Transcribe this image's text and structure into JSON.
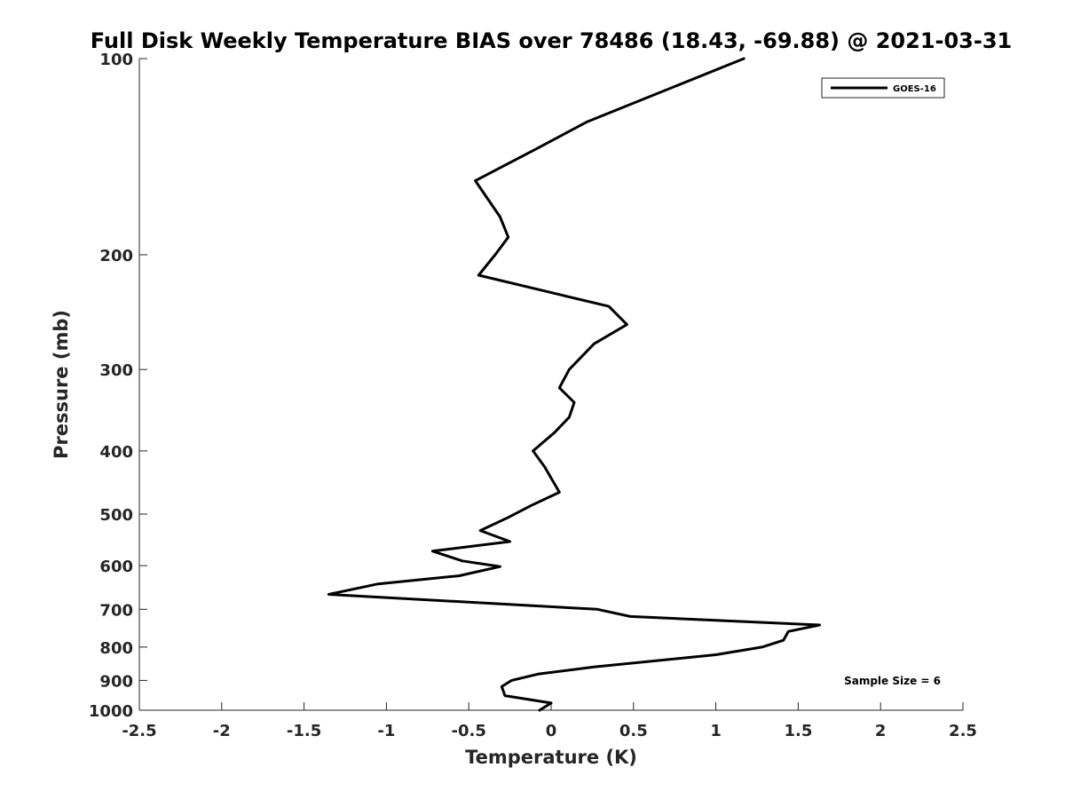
{
  "chart_data": {
    "type": "line",
    "title": "Full Disk Weekly Temperature BIAS over 78486 (18.43, -69.88) @ 2021-03-31",
    "xlabel": "Temperature (K)",
    "ylabel": "Pressure (mb)",
    "xlim": [
      -2.5,
      2.5
    ],
    "ylim": [
      100,
      1000
    ],
    "y_scale": "log",
    "y_reversed": true,
    "grid": false,
    "legend_position": "top-right",
    "x_ticks": [
      {
        "value": -2.5,
        "label": "-2.5"
      },
      {
        "value": -2,
        "label": "-2"
      },
      {
        "value": -1.5,
        "label": "-1.5"
      },
      {
        "value": -1,
        "label": "-1"
      },
      {
        "value": -0.5,
        "label": "-0.5"
      },
      {
        "value": 0,
        "label": "0"
      },
      {
        "value": 0.5,
        "label": "0.5"
      },
      {
        "value": 1,
        "label": "1"
      },
      {
        "value": 1.5,
        "label": "1.5"
      },
      {
        "value": 2,
        "label": "2"
      },
      {
        "value": 2.5,
        "label": "2.5"
      }
    ],
    "y_ticks": [
      {
        "value": 100,
        "label": "100"
      },
      {
        "value": 200,
        "label": "200"
      },
      {
        "value": 300,
        "label": "300"
      },
      {
        "value": 400,
        "label": "400"
      },
      {
        "value": 500,
        "label": "500"
      },
      {
        "value": 600,
        "label": "600"
      },
      {
        "value": 700,
        "label": "700"
      },
      {
        "value": 800,
        "label": "800"
      },
      {
        "value": 900,
        "label": "900"
      },
      {
        "value": 1000,
        "label": "1000"
      }
    ],
    "series": [
      {
        "name": "GOES-16",
        "color": "#000000",
        "points": [
          {
            "x": 1.17,
            "p": 100
          },
          {
            "x": 0.22,
            "p": 125
          },
          {
            "x": -0.1,
            "p": 138
          },
          {
            "x": -0.46,
            "p": 154
          },
          {
            "x": -0.31,
            "p": 175
          },
          {
            "x": -0.26,
            "p": 188
          },
          {
            "x": -0.34,
            "p": 200
          },
          {
            "x": -0.44,
            "p": 215
          },
          {
            "x": 0.35,
            "p": 240
          },
          {
            "x": 0.46,
            "p": 256
          },
          {
            "x": 0.26,
            "p": 274
          },
          {
            "x": 0.11,
            "p": 300
          },
          {
            "x": 0.05,
            "p": 320
          },
          {
            "x": 0.14,
            "p": 337
          },
          {
            "x": 0.11,
            "p": 355
          },
          {
            "x": 0.02,
            "p": 375
          },
          {
            "x": -0.11,
            "p": 400
          },
          {
            "x": -0.04,
            "p": 423
          },
          {
            "x": 0.05,
            "p": 463
          },
          {
            "x": -0.12,
            "p": 485
          },
          {
            "x": -0.26,
            "p": 506
          },
          {
            "x": -0.43,
            "p": 530
          },
          {
            "x": -0.25,
            "p": 551
          },
          {
            "x": -0.72,
            "p": 570
          },
          {
            "x": -0.54,
            "p": 590
          },
          {
            "x": -0.31,
            "p": 602
          },
          {
            "x": -0.56,
            "p": 622
          },
          {
            "x": -1.05,
            "p": 640
          },
          {
            "x": -1.35,
            "p": 664
          },
          {
            "x": 0.28,
            "p": 700
          },
          {
            "x": 0.48,
            "p": 718
          },
          {
            "x": 1.63,
            "p": 740
          },
          {
            "x": 1.44,
            "p": 757
          },
          {
            "x": 1.41,
            "p": 781
          },
          {
            "x": 1.28,
            "p": 800
          },
          {
            "x": 1.0,
            "p": 822
          },
          {
            "x": 0.26,
            "p": 858
          },
          {
            "x": -0.08,
            "p": 880
          },
          {
            "x": -0.24,
            "p": 900
          },
          {
            "x": -0.3,
            "p": 920
          },
          {
            "x": -0.28,
            "p": 950
          },
          {
            "x": 0.0,
            "p": 975
          },
          {
            "x": -0.07,
            "p": 1000
          }
        ]
      }
    ],
    "annotations": [
      {
        "text": "Sample Size = 6",
        "position": "bottom-right"
      }
    ]
  }
}
